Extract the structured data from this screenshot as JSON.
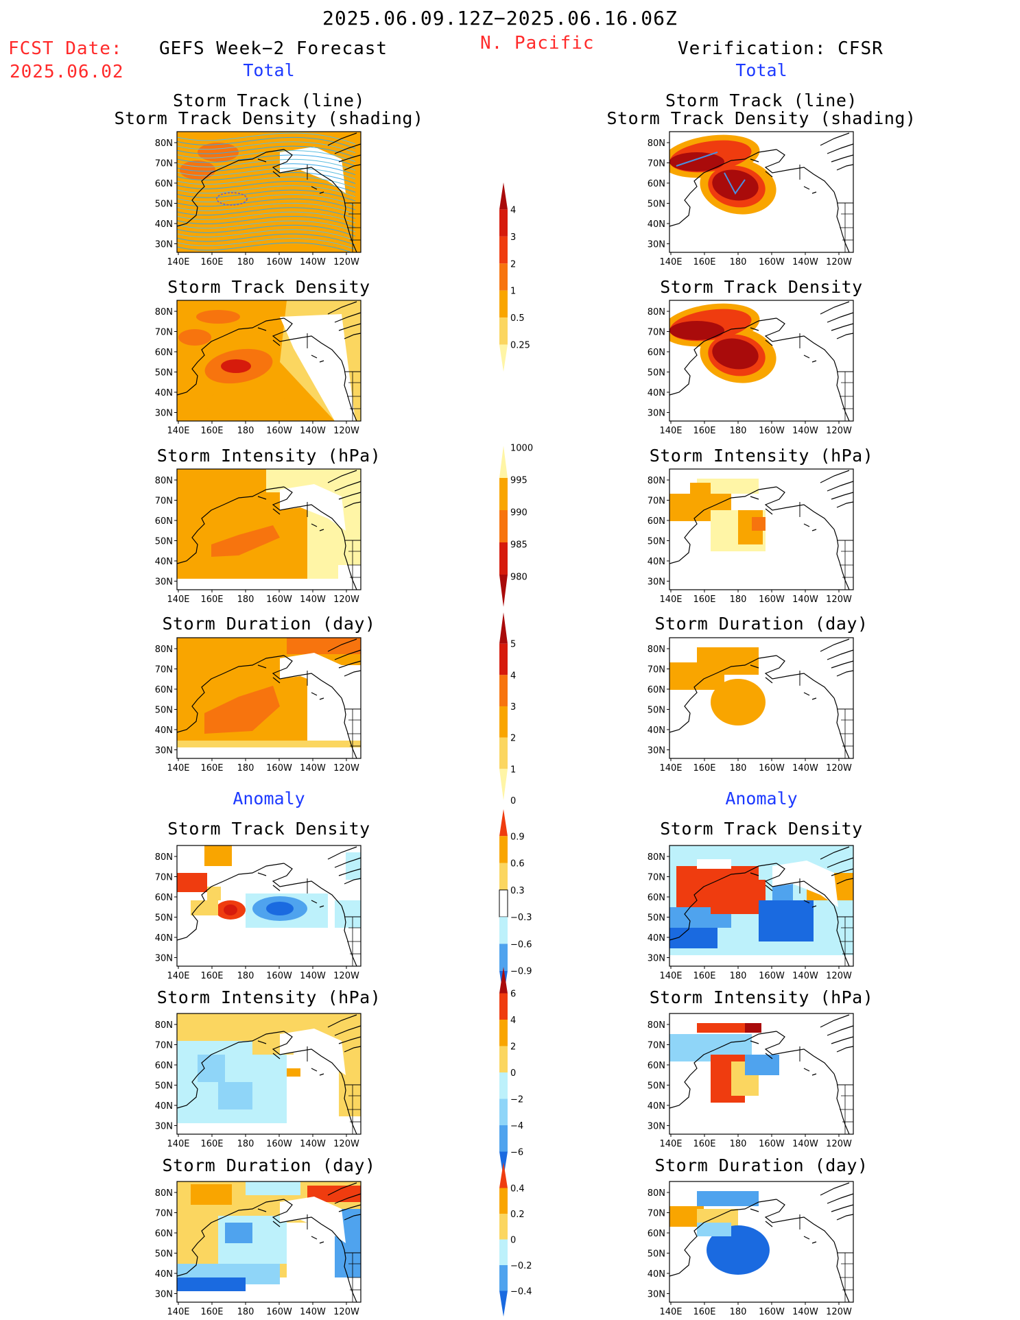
{
  "header": {
    "date_range": "2025.06.09.12Z−2025.06.16.06Z",
    "fcst_label": "FCST Date:",
    "fcst_date": "2025.06.02",
    "left_title": "GEFS Week−2 Forecast",
    "region": "N. Pacific",
    "right_title": "Verification: CFSR",
    "total_left": "Total",
    "total_right": "Total",
    "anomaly_left": "Anomaly",
    "anomaly_right": "Anomaly"
  },
  "panel_titles": {
    "track_line": "Storm Track (line)",
    "track_shading": "Storm Track Density (shading)",
    "density": "Storm Track Density",
    "intensity": "Storm Intensity (hPa)",
    "duration": "Storm Duration (day)"
  },
  "axes": {
    "lat_labels": [
      "80N",
      "70N",
      "60N",
      "50N",
      "40N",
      "30N"
    ],
    "lon_labels": [
      "140E",
      "160E",
      "180",
      "160W",
      "140W",
      "120W"
    ]
  },
  "colors": {
    "pale_yellow": "#fff5a6",
    "yellow": "#fbd660",
    "orange": "#f9a500",
    "dark_orange": "#f7740e",
    "red_orange": "#ef3c0f",
    "red": "#d61b0c",
    "dark_red": "#a90b0b",
    "pale_blue": "#bdf1fb",
    "light_blue": "#8fd5f8",
    "mid_blue": "#4fa3ee",
    "blue": "#1a6ae0"
  },
  "chart_data": [
    {
      "type": "heatmap",
      "name": "density_total_colorbar",
      "levels": [
        "0.25",
        "0.5",
        "1",
        "2",
        "3",
        "4"
      ],
      "colors": [
        "#fff5a6",
        "#fbd660",
        "#f9a500",
        "#f7740e",
        "#ef3c0f",
        "#d61b0c",
        "#a90b0b"
      ]
    },
    {
      "type": "heatmap",
      "name": "intensity_total_colorbar",
      "levels": [
        "1000",
        "995",
        "990",
        "985",
        "980"
      ],
      "colors": [
        "#fff5a6",
        "#f9a500",
        "#f7740e",
        "#d61b0c",
        "#a90b0b"
      ]
    },
    {
      "type": "heatmap",
      "name": "duration_total_colorbar",
      "levels": [
        "5",
        "4",
        "3",
        "2",
        "1",
        "0"
      ],
      "colors": [
        "#a90b0b",
        "#d61b0c",
        "#f7740e",
        "#f9a500",
        "#fbd660",
        "#fff5a6"
      ]
    },
    {
      "type": "heatmap",
      "name": "density_anomaly_colorbar",
      "levels": [
        "0.9",
        "0.6",
        "0.3",
        "−0.3",
        "−0.6",
        "−0.9"
      ],
      "colors": [
        "#ef3c0f",
        "#f9a500",
        "#fbd660",
        "#ffffff",
        "#bdf1fb",
        "#4fa3ee",
        "#1a6ae0"
      ]
    },
    {
      "type": "heatmap",
      "name": "intensity_anomaly_colorbar",
      "levels": [
        "6",
        "4",
        "2",
        "0",
        "−2",
        "−4",
        "−6"
      ],
      "colors": [
        "#a90b0b",
        "#ef3c0f",
        "#f9a500",
        "#fbd660",
        "#bdf1fb",
        "#8fd5f8",
        "#4fa3ee",
        "#1a6ae0"
      ]
    },
    {
      "type": "heatmap",
      "name": "duration_anomaly_colorbar",
      "levels": [
        "0.4",
        "0.2",
        "0",
        "−0.2",
        "−0.4"
      ],
      "colors": [
        "#ef3c0f",
        "#f9a500",
        "#fbd660",
        "#bdf1fb",
        "#4fa3ee",
        "#1a6ae0"
      ]
    }
  ]
}
